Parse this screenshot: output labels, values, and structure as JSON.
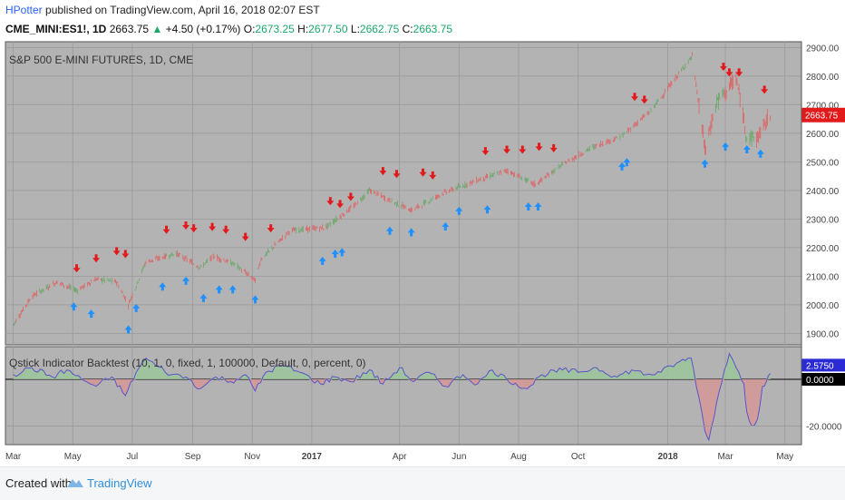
{
  "header": {
    "author": "HPotter",
    "published": "published on TradingView.com, April 16, 2018 02:07 EST",
    "symbol": "CME_MINI:ES1!, 1D",
    "last": "2663.75",
    "change": "+4.50 (+0.17%)",
    "o_label": "O:",
    "o": "2673.25",
    "h_label": "H:",
    "h": "2677.50",
    "l_label": "L:",
    "l": "2662.75",
    "c_label": "C:",
    "c": "2663.75"
  },
  "footer": {
    "created": "Created with",
    "brand": "TradingView"
  },
  "colors": {
    "pane_bg": "#b3b3b3",
    "candle_red": "#e06060",
    "candle_green": "#66a864",
    "arrow_up": "#1e90ff",
    "arrow_down": "#e31a1c",
    "osc_line": "#5a55c8",
    "osc_pos_fill": "#9bc49b",
    "osc_neg_fill": "#d19898",
    "price_badge": "#e31a1c",
    "osc_badge_pos": "#2b2bd6",
    "osc_badge_zero": "#000000"
  },
  "chart_data": [
    {
      "type": "candlestick",
      "title": "S&P 500 E-MINI FUTURES, 1D, CME",
      "ylim": [
        1860,
        2920
      ],
      "y_ticks": [
        "2900.00",
        "2800.00",
        "2700.00",
        "2600.00",
        "2500.00",
        "2400.00",
        "2300.00",
        "2200.00",
        "2100.00",
        "2000.00",
        "1900.00"
      ],
      "last_price_label": "2663.75",
      "grid": true,
      "x_ticks": [
        "Mar",
        "May",
        "Jul",
        "Sep",
        "Nov",
        "2017",
        "Apr",
        "Jun",
        "Aug",
        "Oct",
        "2018",
        "Mar",
        "May"
      ],
      "price_path": [
        [
          "2016-03-01",
          1930
        ],
        [
          "2016-03-20",
          2030
        ],
        [
          "2016-04-15",
          2080
        ],
        [
          "2016-05-05",
          2050
        ],
        [
          "2016-05-25",
          2090
        ],
        [
          "2016-06-15",
          2080
        ],
        [
          "2016-06-27",
          2000
        ],
        [
          "2016-07-15",
          2150
        ],
        [
          "2016-08-15",
          2180
        ],
        [
          "2016-09-09",
          2130
        ],
        [
          "2016-09-22",
          2170
        ],
        [
          "2016-10-15",
          2140
        ],
        [
          "2016-11-04",
          2085
        ],
        [
          "2016-11-10",
          2160
        ],
        [
          "2016-12-10",
          2260
        ],
        [
          "2017-01-15",
          2270
        ],
        [
          "2017-02-15",
          2350
        ],
        [
          "2017-03-01",
          2400
        ],
        [
          "2017-04-13",
          2330
        ],
        [
          "2017-05-15",
          2390
        ],
        [
          "2017-06-15",
          2430
        ],
        [
          "2017-07-20",
          2470
        ],
        [
          "2017-08-18",
          2420
        ],
        [
          "2017-09-15",
          2490
        ],
        [
          "2017-10-15",
          2550
        ],
        [
          "2017-11-15",
          2590
        ],
        [
          "2017-12-15",
          2680
        ],
        [
          "2018-01-26",
          2870
        ],
        [
          "2018-02-08",
          2540
        ],
        [
          "2018-02-20",
          2710
        ],
        [
          "2018-03-12",
          2790
        ],
        [
          "2018-03-23",
          2590
        ],
        [
          "2018-04-02",
          2580
        ],
        [
          "2018-04-16",
          2663.75
        ]
      ],
      "buy_signals": [
        [
          "2016-05-02",
          2040
        ],
        [
          "2016-05-20",
          2015
        ],
        [
          "2016-06-27",
          1960
        ],
        [
          "2016-07-05",
          2035
        ],
        [
          "2016-08-01",
          2110
        ],
        [
          "2016-08-25",
          2130
        ],
        [
          "2016-09-12",
          2070
        ],
        [
          "2016-09-28",
          2100
        ],
        [
          "2016-10-12",
          2100
        ],
        [
          "2016-11-04",
          2065
        ],
        [
          "2017-01-12",
          2200
        ],
        [
          "2017-01-25",
          2225
        ],
        [
          "2017-02-01",
          2230
        ],
        [
          "2017-03-22",
          2305
        ],
        [
          "2017-04-13",
          2300
        ],
        [
          "2017-05-18",
          2320
        ],
        [
          "2017-06-01",
          2375
        ],
        [
          "2017-06-30",
          2380
        ],
        [
          "2017-08-11",
          2390
        ],
        [
          "2017-08-21",
          2390
        ],
        [
          "2017-11-15",
          2530
        ],
        [
          "2017-11-20",
          2545
        ],
        [
          "2018-02-08",
          2540
        ],
        [
          "2018-03-01",
          2600
        ],
        [
          "2018-03-23",
          2590
        ],
        [
          "2018-04-06",
          2575
        ]
      ],
      "sell_signals": [
        [
          "2016-05-05",
          2075
        ],
        [
          "2016-05-25",
          2110
        ],
        [
          "2016-06-15",
          2135
        ],
        [
          "2016-06-24",
          2125
        ],
        [
          "2016-08-05",
          2210
        ],
        [
          "2016-08-25",
          2225
        ],
        [
          "2016-09-02",
          2215
        ],
        [
          "2016-09-21",
          2220
        ],
        [
          "2016-10-05",
          2210
        ],
        [
          "2016-10-25",
          2185
        ],
        [
          "2016-11-20",
          2215
        ],
        [
          "2017-01-20",
          2310
        ],
        [
          "2017-01-30",
          2300
        ],
        [
          "2017-02-10",
          2325
        ],
        [
          "2017-03-15",
          2415
        ],
        [
          "2017-03-29",
          2405
        ],
        [
          "2017-04-25",
          2410
        ],
        [
          "2017-05-05",
          2400
        ],
        [
          "2017-06-28",
          2485
        ],
        [
          "2017-07-20",
          2490
        ],
        [
          "2017-08-05",
          2490
        ],
        [
          "2017-08-22",
          2500
        ],
        [
          "2017-09-06",
          2495
        ],
        [
          "2017-11-28",
          2675
        ],
        [
          "2017-12-08",
          2665
        ],
        [
          "2018-02-27",
          2780
        ],
        [
          "2018-03-05",
          2760
        ],
        [
          "2018-03-15",
          2760
        ],
        [
          "2018-04-10",
          2700
        ]
      ]
    },
    {
      "type": "line",
      "title": "Qstick Indicator Backtest (10, 1, 0, fixed, 1, 100000, Default, 0, percent, 0)",
      "ylim": [
        -28,
        14
      ],
      "y_ticks": [
        "-20.0000"
      ],
      "last_value_label": "2.5750",
      "zero_label": "0.0000",
      "series_points": [
        [
          "2016-03-01",
          2
        ],
        [
          "2016-03-20",
          5
        ],
        [
          "2016-04-10",
          1
        ],
        [
          "2016-04-25",
          4
        ],
        [
          "2016-05-10",
          0
        ],
        [
          "2016-05-25",
          -3
        ],
        [
          "2016-06-10",
          1
        ],
        [
          "2016-06-24",
          -7
        ],
        [
          "2016-07-05",
          3
        ],
        [
          "2016-07-15",
          9
        ],
        [
          "2016-07-25",
          6
        ],
        [
          "2016-08-10",
          2
        ],
        [
          "2016-08-25",
          1
        ],
        [
          "2016-09-09",
          -4
        ],
        [
          "2016-09-25",
          1
        ],
        [
          "2016-10-10",
          -1
        ],
        [
          "2016-10-25",
          2
        ],
        [
          "2016-11-04",
          -5
        ],
        [
          "2016-11-15",
          3
        ],
        [
          "2016-12-01",
          6
        ],
        [
          "2016-12-20",
          3
        ],
        [
          "2017-01-10",
          -2
        ],
        [
          "2017-01-25",
          1
        ],
        [
          "2017-02-10",
          -1
        ],
        [
          "2017-03-01",
          4
        ],
        [
          "2017-03-15",
          -2
        ],
        [
          "2017-04-01",
          5
        ],
        [
          "2017-04-15",
          -1
        ],
        [
          "2017-05-01",
          3
        ],
        [
          "2017-05-18",
          -3
        ],
        [
          "2017-06-05",
          2
        ],
        [
          "2017-06-20",
          -2
        ],
        [
          "2017-07-05",
          4
        ],
        [
          "2017-07-20",
          0
        ],
        [
          "2017-08-10",
          -4
        ],
        [
          "2017-08-25",
          2
        ],
        [
          "2017-09-15",
          4
        ],
        [
          "2017-10-01",
          3
        ],
        [
          "2017-10-20",
          5
        ],
        [
          "2017-11-10",
          1
        ],
        [
          "2017-11-25",
          4
        ],
        [
          "2017-12-10",
          2
        ],
        [
          "2017-12-25",
          3
        ],
        [
          "2018-01-10",
          7
        ],
        [
          "2018-01-25",
          9
        ],
        [
          "2018-02-02",
          -8
        ],
        [
          "2018-02-08",
          -22
        ],
        [
          "2018-02-12",
          -26
        ],
        [
          "2018-02-20",
          -10
        ],
        [
          "2018-02-28",
          4
        ],
        [
          "2018-03-05",
          11
        ],
        [
          "2018-03-12",
          5
        ],
        [
          "2018-03-20",
          -2
        ],
        [
          "2018-03-23",
          -14
        ],
        [
          "2018-03-28",
          -20
        ],
        [
          "2018-04-03",
          -17
        ],
        [
          "2018-04-08",
          -3
        ],
        [
          "2018-04-12",
          -1
        ],
        [
          "2018-04-16",
          2.575
        ]
      ]
    }
  ]
}
